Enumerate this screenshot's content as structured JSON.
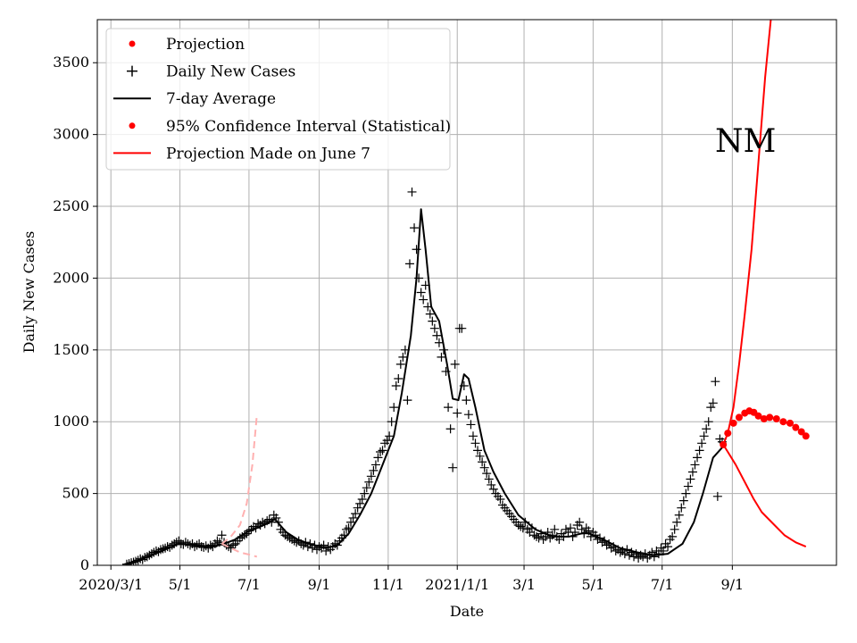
{
  "chart_data": {
    "type": "line",
    "title": "",
    "annotation": "NM",
    "xlabel": "Date",
    "ylabel": "Daily New Cases",
    "xlim": [
      -12,
      641
    ],
    "ylim": [
      0,
      3800
    ],
    "grid": true,
    "legend_position": "top-left",
    "x_unit": "days since 2020-03-01",
    "x_ticks": [
      {
        "day": 0,
        "label": "2020/3/1"
      },
      {
        "day": 61,
        "label": "5/1"
      },
      {
        "day": 122,
        "label": "7/1"
      },
      {
        "day": 184,
        "label": "9/1"
      },
      {
        "day": 245,
        "label": "11/1"
      },
      {
        "day": 306,
        "label": "2021/1/1"
      },
      {
        "day": 365,
        "label": "3/1"
      },
      {
        "day": 426,
        "label": "5/1"
      },
      {
        "day": 487,
        "label": "7/1"
      },
      {
        "day": 549,
        "label": "9/1"
      }
    ],
    "y_ticks": [
      {
        "value": 0,
        "label": "0"
      },
      {
        "value": 500,
        "label": "500"
      },
      {
        "value": 1000,
        "label": "1000"
      },
      {
        "value": 1500,
        "label": "1500"
      },
      {
        "value": 2000,
        "label": "2000"
      },
      {
        "value": 2500,
        "label": "2500"
      },
      {
        "value": 3000,
        "label": "3000"
      },
      {
        "value": 3500,
        "label": "3500"
      }
    ],
    "legend": [
      {
        "label": "Projection",
        "marker": "dot",
        "color": "#ff0000"
      },
      {
        "label": "Daily New Cases",
        "marker": "plus",
        "color": "#000000"
      },
      {
        "label": "7-day Average",
        "marker": "line",
        "color": "#000000"
      },
      {
        "label": "95% Confidence Interval (Statistical)",
        "marker": "dot",
        "color": "#ff0000"
      },
      {
        "label": "Projection Made on June 7",
        "marker": "line",
        "color": "#ff0000"
      }
    ],
    "series": [
      {
        "name": "7-day Average",
        "style": "line",
        "color": "#000000",
        "points": [
          [
            14,
            10
          ],
          [
            30,
            50
          ],
          [
            45,
            100
          ],
          [
            60,
            150
          ],
          [
            75,
            140
          ],
          [
            90,
            130
          ],
          [
            100,
            150
          ],
          [
            110,
            180
          ],
          [
            120,
            230
          ],
          [
            135,
            280
          ],
          [
            145,
            320
          ],
          [
            155,
            230
          ],
          [
            165,
            180
          ],
          [
            175,
            150
          ],
          [
            190,
            120
          ],
          [
            200,
            140
          ],
          [
            210,
            220
          ],
          [
            220,
            350
          ],
          [
            230,
            500
          ],
          [
            240,
            700
          ],
          [
            250,
            900
          ],
          [
            257,
            1200
          ],
          [
            265,
            1600
          ],
          [
            270,
            2000
          ],
          [
            274,
            2480
          ],
          [
            278,
            2200
          ],
          [
            283,
            1800
          ],
          [
            290,
            1700
          ],
          [
            297,
            1400
          ],
          [
            302,
            1160
          ],
          [
            307,
            1150
          ],
          [
            312,
            1330
          ],
          [
            316,
            1300
          ],
          [
            322,
            1100
          ],
          [
            330,
            800
          ],
          [
            338,
            650
          ],
          [
            348,
            500
          ],
          [
            360,
            350
          ],
          [
            375,
            250
          ],
          [
            390,
            200
          ],
          [
            405,
            200
          ],
          [
            420,
            230
          ],
          [
            435,
            180
          ],
          [
            450,
            120
          ],
          [
            465,
            90
          ],
          [
            480,
            70
          ],
          [
            492,
            80
          ],
          [
            505,
            150
          ],
          [
            515,
            300
          ],
          [
            523,
            500
          ],
          [
            532,
            750
          ],
          [
            540,
            820
          ]
        ]
      },
      {
        "name": "Projection",
        "style": "dots",
        "color": "#ff0000",
        "points": [
          [
            541,
            840
          ],
          [
            545,
            920
          ],
          [
            550,
            990
          ],
          [
            555,
            1030
          ],
          [
            560,
            1060
          ],
          [
            564,
            1075
          ],
          [
            568,
            1065
          ],
          [
            572,
            1040
          ],
          [
            577,
            1020
          ],
          [
            582,
            1030
          ],
          [
            588,
            1020
          ],
          [
            594,
            1000
          ],
          [
            600,
            990
          ],
          [
            605,
            960
          ],
          [
            610,
            930
          ],
          [
            614,
            900
          ]
        ]
      },
      {
        "name": "95% Confidence Interval (Statistical) upper",
        "style": "line",
        "color": "#ff0000",
        "points": [
          [
            541,
            840
          ],
          [
            545,
            920
          ],
          [
            550,
            1100
          ],
          [
            555,
            1400
          ],
          [
            560,
            1750
          ],
          [
            566,
            2200
          ],
          [
            572,
            2800
          ],
          [
            578,
            3400
          ],
          [
            583,
            3800
          ]
        ]
      },
      {
        "name": "95% Confidence Interval (Statistical) lower",
        "style": "line",
        "color": "#ff0000",
        "points": [
          [
            541,
            840
          ],
          [
            545,
            790
          ],
          [
            552,
            700
          ],
          [
            560,
            580
          ],
          [
            568,
            460
          ],
          [
            575,
            370
          ],
          [
            585,
            290
          ],
          [
            595,
            210
          ],
          [
            605,
            160
          ],
          [
            614,
            130
          ]
        ]
      },
      {
        "name": "Projection Made on June 7",
        "style": "dashed",
        "color": "#ffb0b0",
        "points": [
          [
            98,
            150
          ],
          [
            106,
            200
          ],
          [
            114,
            280
          ],
          [
            120,
            430
          ],
          [
            125,
            700
          ],
          [
            129,
            1050
          ]
        ]
      },
      {
        "name": "Projection Made on June 7 lower",
        "style": "dashed",
        "color": "#ffb0b0",
        "points": [
          [
            98,
            150
          ],
          [
            106,
            120
          ],
          [
            114,
            90
          ],
          [
            122,
            75
          ],
          [
            129,
            60
          ]
        ]
      }
    ],
    "daily_new_cases": [
      [
        14,
        8
      ],
      [
        16,
        12
      ],
      [
        18,
        18
      ],
      [
        20,
        22
      ],
      [
        22,
        28
      ],
      [
        24,
        35
      ],
      [
        26,
        45
      ],
      [
        28,
        40
      ],
      [
        30,
        55
      ],
      [
        32,
        60
      ],
      [
        34,
        70
      ],
      [
        36,
        80
      ],
      [
        38,
        90
      ],
      [
        40,
        100
      ],
      [
        42,
        95
      ],
      [
        44,
        110
      ],
      [
        46,
        115
      ],
      [
        48,
        120
      ],
      [
        50,
        130
      ],
      [
        52,
        125
      ],
      [
        54,
        140
      ],
      [
        56,
        150
      ],
      [
        58,
        160
      ],
      [
        60,
        170
      ],
      [
        62,
        150
      ],
      [
        64,
        145
      ],
      [
        66,
        160
      ],
      [
        68,
        150
      ],
      [
        70,
        140
      ],
      [
        72,
        150
      ],
      [
        74,
        130
      ],
      [
        76,
        140
      ],
      [
        78,
        150
      ],
      [
        80,
        130
      ],
      [
        82,
        125
      ],
      [
        84,
        135
      ],
      [
        86,
        120
      ],
      [
        88,
        140
      ],
      [
        90,
        130
      ],
      [
        92,
        150
      ],
      [
        94,
        170
      ],
      [
        96,
        160
      ],
      [
        98,
        210
      ],
      [
        100,
        160
      ],
      [
        102,
        140
      ],
      [
        104,
        130
      ],
      [
        106,
        120
      ],
      [
        108,
        140
      ],
      [
        110,
        150
      ],
      [
        112,
        170
      ],
      [
        114,
        190
      ],
      [
        116,
        200
      ],
      [
        118,
        210
      ],
      [
        120,
        220
      ],
      [
        122,
        240
      ],
      [
        124,
        250
      ],
      [
        126,
        270
      ],
      [
        128,
        260
      ],
      [
        130,
        290
      ],
      [
        132,
        280
      ],
      [
        134,
        300
      ],
      [
        136,
        290
      ],
      [
        138,
        310
      ],
      [
        140,
        320
      ],
      [
        142,
        300
      ],
      [
        144,
        350
      ],
      [
        146,
        330
      ],
      [
        148,
        300
      ],
      [
        150,
        250
      ],
      [
        152,
        230
      ],
      [
        154,
        210
      ],
      [
        156,
        200
      ],
      [
        158,
        190
      ],
      [
        160,
        180
      ],
      [
        162,
        170
      ],
      [
        164,
        160
      ],
      [
        166,
        170
      ],
      [
        168,
        150
      ],
      [
        170,
        140
      ],
      [
        172,
        160
      ],
      [
        174,
        130
      ],
      [
        176,
        150
      ],
      [
        178,
        120
      ],
      [
        180,
        140
      ],
      [
        182,
        110
      ],
      [
        184,
        130
      ],
      [
        186,
        120
      ],
      [
        188,
        140
      ],
      [
        190,
        100
      ],
      [
        192,
        130
      ],
      [
        194,
        110
      ],
      [
        196,
        130
      ],
      [
        198,
        150
      ],
      [
        200,
        140
      ],
      [
        202,
        170
      ],
      [
        204,
        190
      ],
      [
        206,
        210
      ],
      [
        208,
        250
      ],
      [
        210,
        260
      ],
      [
        212,
        300
      ],
      [
        214,
        330
      ],
      [
        216,
        360
      ],
      [
        218,
        400
      ],
      [
        220,
        430
      ],
      [
        222,
        460
      ],
      [
        224,
        500
      ],
      [
        226,
        540
      ],
      [
        228,
        580
      ],
      [
        230,
        620
      ],
      [
        232,
        660
      ],
      [
        234,
        700
      ],
      [
        236,
        750
      ],
      [
        238,
        790
      ],
      [
        240,
        800
      ],
      [
        242,
        850
      ],
      [
        244,
        870
      ],
      [
        246,
        900
      ],
      [
        248,
        1000
      ],
      [
        250,
        1100
      ],
      [
        252,
        1250
      ],
      [
        254,
        1300
      ],
      [
        256,
        1400
      ],
      [
        258,
        1450
      ],
      [
        260,
        1500
      ],
      [
        262,
        1150
      ],
      [
        264,
        2100
      ],
      [
        266,
        2600
      ],
      [
        268,
        2350
      ],
      [
        270,
        2200
      ],
      [
        272,
        2000
      ],
      [
        274,
        1900
      ],
      [
        276,
        1850
      ],
      [
        278,
        1950
      ],
      [
        280,
        1800
      ],
      [
        282,
        1750
      ],
      [
        284,
        1700
      ],
      [
        286,
        1650
      ],
      [
        288,
        1600
      ],
      [
        290,
        1550
      ],
      [
        292,
        1450
      ],
      [
        294,
        1500
      ],
      [
        296,
        1350
      ],
      [
        298,
        1100
      ],
      [
        300,
        950
      ],
      [
        302,
        680
      ],
      [
        304,
        1400
      ],
      [
        306,
        1060
      ],
      [
        308,
        1650
      ],
      [
        310,
        1650
      ],
      [
        312,
        1250
      ],
      [
        314,
        1150
      ],
      [
        316,
        1050
      ],
      [
        318,
        980
      ],
      [
        320,
        900
      ],
      [
        322,
        850
      ],
      [
        324,
        800
      ],
      [
        326,
        760
      ],
      [
        328,
        720
      ],
      [
        330,
        680
      ],
      [
        332,
        640
      ],
      [
        334,
        600
      ],
      [
        336,
        560
      ],
      [
        338,
        530
      ],
      [
        340,
        500
      ],
      [
        342,
        480
      ],
      [
        344,
        460
      ],
      [
        346,
        420
      ],
      [
        348,
        400
      ],
      [
        350,
        380
      ],
      [
        352,
        360
      ],
      [
        354,
        340
      ],
      [
        356,
        320
      ],
      [
        358,
        300
      ],
      [
        360,
        280
      ],
      [
        362,
        270
      ],
      [
        364,
        260
      ],
      [
        366,
        300
      ],
      [
        368,
        250
      ],
      [
        370,
        230
      ],
      [
        372,
        260
      ],
      [
        374,
        210
      ],
      [
        376,
        200
      ],
      [
        378,
        190
      ],
      [
        380,
        220
      ],
      [
        382,
        180
      ],
      [
        384,
        200
      ],
      [
        386,
        230
      ],
      [
        388,
        190
      ],
      [
        390,
        210
      ],
      [
        392,
        250
      ],
      [
        394,
        200
      ],
      [
        396,
        180
      ],
      [
        398,
        220
      ],
      [
        400,
        200
      ],
      [
        402,
        250
      ],
      [
        404,
        230
      ],
      [
        406,
        260
      ],
      [
        408,
        200
      ],
      [
        410,
        230
      ],
      [
        412,
        280
      ],
      [
        414,
        300
      ],
      [
        416,
        250
      ],
      [
        418,
        220
      ],
      [
        420,
        260
      ],
      [
        422,
        240
      ],
      [
        424,
        200
      ],
      [
        426,
        230
      ],
      [
        428,
        210
      ],
      [
        430,
        180
      ],
      [
        432,
        190
      ],
      [
        434,
        160
      ],
      [
        436,
        170
      ],
      [
        438,
        140
      ],
      [
        440,
        150
      ],
      [
        442,
        120
      ],
      [
        444,
        130
      ],
      [
        446,
        100
      ],
      [
        448,
        110
      ],
      [
        450,
        90
      ],
      [
        452,
        100
      ],
      [
        454,
        80
      ],
      [
        456,
        110
      ],
      [
        458,
        70
      ],
      [
        460,
        90
      ],
      [
        462,
        60
      ],
      [
        464,
        80
      ],
      [
        466,
        50
      ],
      [
        468,
        70
      ],
      [
        470,
        60
      ],
      [
        472,
        80
      ],
      [
        474,
        50
      ],
      [
        476,
        70
      ],
      [
        478,
        90
      ],
      [
        480,
        60
      ],
      [
        482,
        100
      ],
      [
        484,
        80
      ],
      [
        486,
        120
      ],
      [
        488,
        100
      ],
      [
        490,
        150
      ],
      [
        492,
        130
      ],
      [
        494,
        180
      ],
      [
        496,
        200
      ],
      [
        498,
        250
      ],
      [
        500,
        300
      ],
      [
        502,
        350
      ],
      [
        504,
        400
      ],
      [
        506,
        450
      ],
      [
        508,
        500
      ],
      [
        510,
        550
      ],
      [
        512,
        600
      ],
      [
        514,
        650
      ],
      [
        516,
        700
      ],
      [
        518,
        750
      ],
      [
        520,
        800
      ],
      [
        522,
        850
      ],
      [
        524,
        900
      ],
      [
        526,
        950
      ],
      [
        528,
        1000
      ],
      [
        530,
        1100
      ],
      [
        532,
        1130
      ],
      [
        534,
        1280
      ],
      [
        536,
        480
      ],
      [
        538,
        880
      ],
      [
        540,
        860
      ]
    ]
  }
}
